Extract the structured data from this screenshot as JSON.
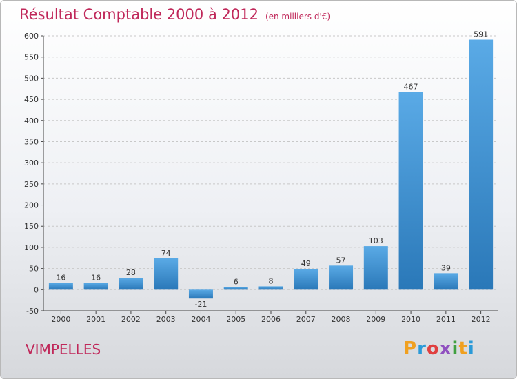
{
  "title": "Résultat Comptable 2000 à 2012",
  "subtitle": "(en milliers d'€)",
  "commune": "VIMPELLES",
  "logo": "Proxiti",
  "colors": {
    "title": "#c0285a",
    "bar_light": "#5aaae6",
    "bar_dark": "#2a78b8"
  },
  "chart_data": {
    "type": "bar",
    "title": "Résultat Comptable 2000 à 2012",
    "subtitle": "(en milliers d'€)",
    "xlabel": "",
    "ylabel": "",
    "categories": [
      "2000",
      "2001",
      "2002",
      "2003",
      "2004",
      "2005",
      "2006",
      "2007",
      "2008",
      "2009",
      "2010",
      "2011",
      "2012"
    ],
    "values": [
      16,
      16,
      28,
      74,
      -21,
      6,
      8,
      49,
      57,
      103,
      467,
      39,
      591
    ],
    "ylim": [
      -50,
      600
    ],
    "yticks": [
      -50,
      0,
      50,
      100,
      150,
      200,
      250,
      300,
      350,
      400,
      450,
      500,
      550,
      600
    ],
    "grid": "horizontal dashed"
  }
}
